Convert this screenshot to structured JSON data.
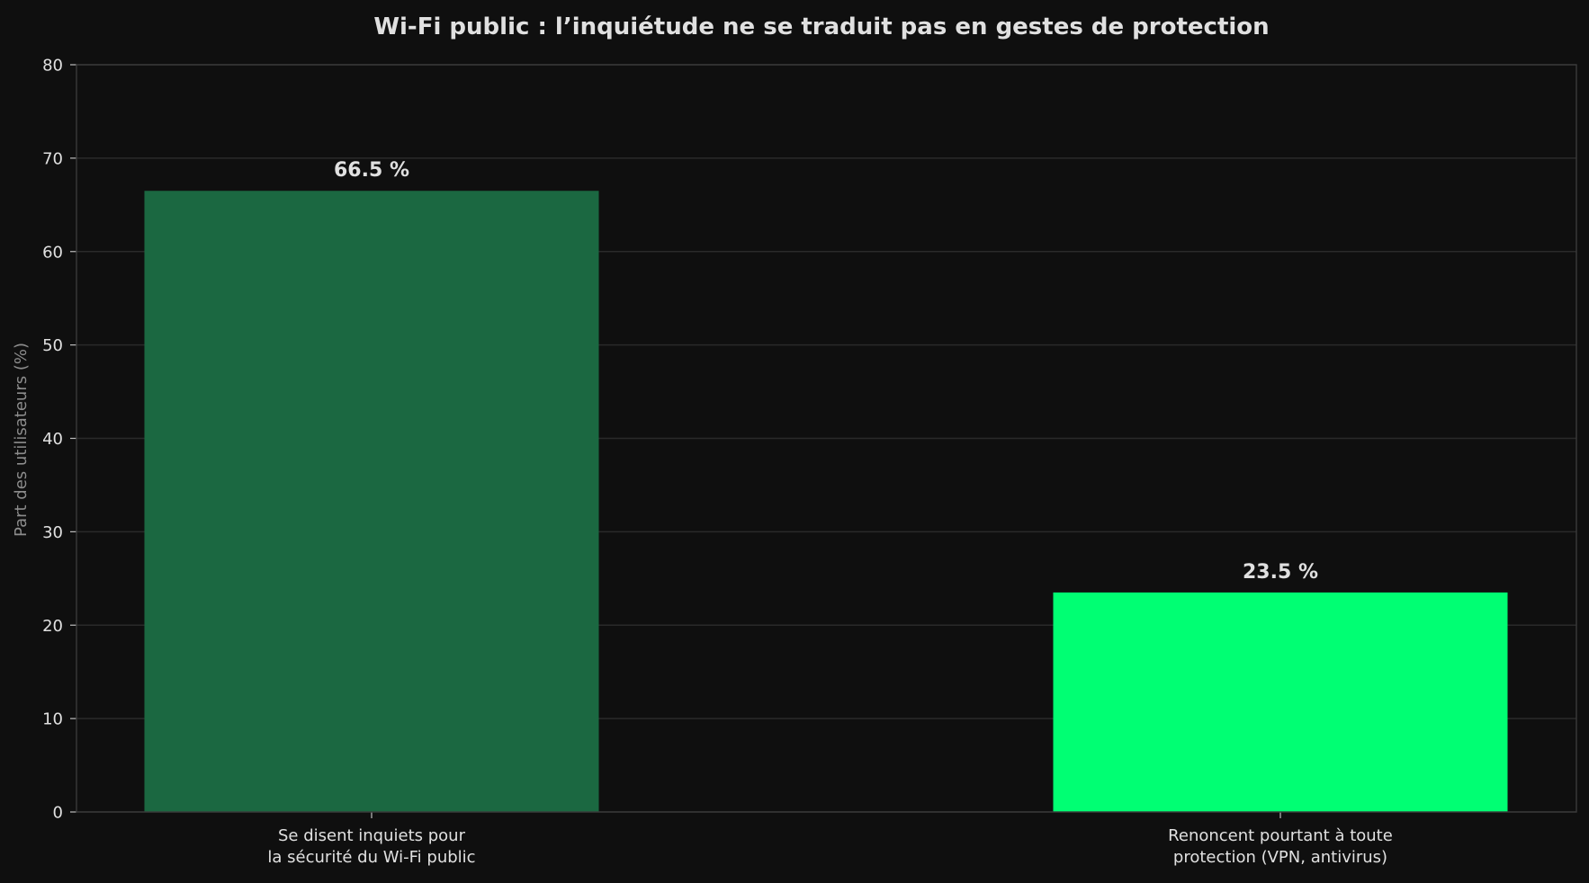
{
  "chart_data": {
    "type": "bar",
    "title": "Wi-Fi public : l’inquiétude ne se traduit pas en gestes de protection",
    "xlabel": "",
    "ylabel": "Part des utilisateurs (%)",
    "ylim": [
      0,
      80
    ],
    "yticks": [
      0,
      10,
      20,
      30,
      40,
      50,
      60,
      70,
      80
    ],
    "grid": true,
    "categories": [
      [
        "Se disent inquiets pour",
        "la sécurité du Wi-Fi public"
      ],
      [
        "Renoncent pourtant à toute",
        "protection (VPN, antivirus)"
      ]
    ],
    "values": [
      66.5,
      23.5
    ],
    "data_labels": [
      "66.5 %",
      "23.5 %"
    ],
    "bar_colors": [
      "#1b6841",
      "#00ff73"
    ]
  },
  "colors": {
    "background": "#0f0f0f",
    "grid": "#2a2a2a",
    "axis": "#3a3a3a",
    "text": "#e0e0e0",
    "muted_text": "#8c8c8c"
  }
}
